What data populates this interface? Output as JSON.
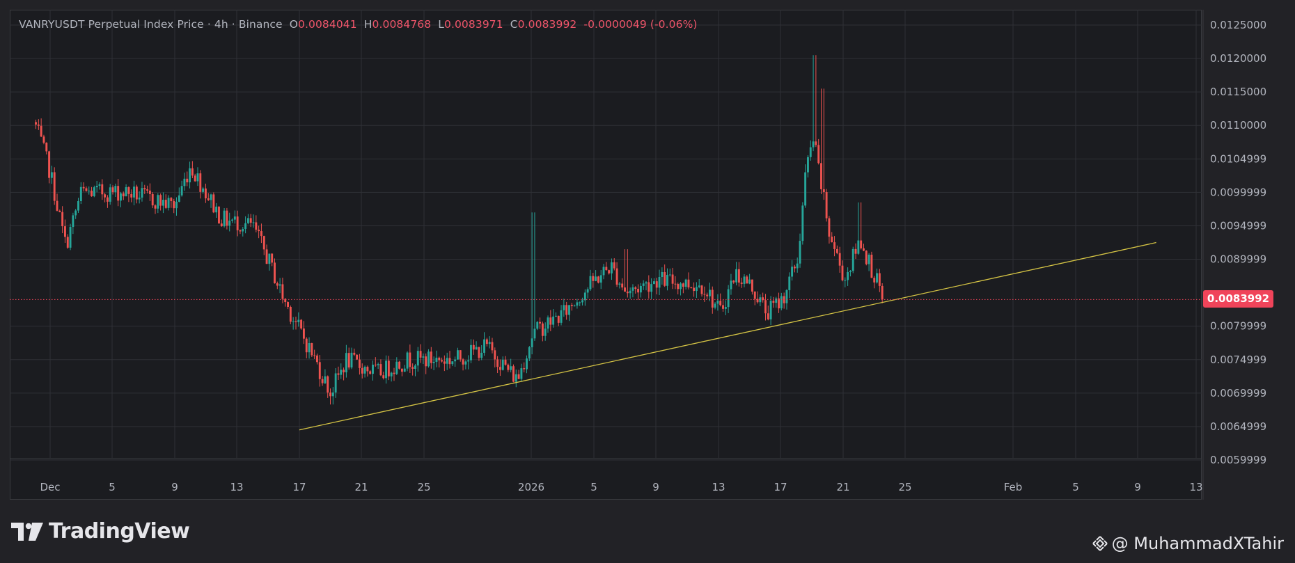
{
  "legend": {
    "symbol": "VANRYUSDT Perpetual Index Price · 4h · Binance",
    "open_label": "O",
    "open": "0.0084041",
    "high_label": "H",
    "high": "0.0084768",
    "low_label": "L",
    "low": "0.0083971",
    "close_label": "C",
    "close": "0.0083992",
    "change": "-0.0000049 (-0.06%)"
  },
  "current_price": "0.0083992",
  "brand": "TradingView",
  "credit": "@ MuhammadXTahir",
  "colors": {
    "up": "#26a69a",
    "down": "#ef5350",
    "trendline": "#d6c545",
    "badge": "#f0445a",
    "grid": "#2f3036"
  },
  "icons": [
    "tradingview-logo-icon",
    "binance-logo-icon"
  ],
  "chart_data": {
    "type": "candlestick",
    "title": "VANRYUSDT Perpetual Index Price · 4h · Binance",
    "timeframe": "4h",
    "y_ticks": [
      "0.0125000",
      "0.0120000",
      "0.0115000",
      "0.0110000",
      "0.0104999",
      "0.0099999",
      "0.0094999",
      "0.0089999",
      "0.0079999",
      "0.0074999",
      "0.0069999",
      "0.0064999",
      "0.0059999"
    ],
    "x_ticks": [
      "Dec",
      "5",
      "9",
      "13",
      "17",
      "21",
      "25",
      "2026",
      "5",
      "9",
      "13",
      "17",
      "21",
      "25",
      "Feb",
      "5",
      "9",
      "13"
    ],
    "ylim": [
      0.0059,
      0.0126
    ],
    "last_price": 0.0083992,
    "trendline": {
      "points": [
        {
          "date": "Dec 17",
          "price": 0.00645
        },
        {
          "date": "Feb 10",
          "price": 0.00925
        }
      ]
    },
    "path_anchors": [
      {
        "date": "Nov 30",
        "price": 0.01105
      },
      {
        "date": "Dec 1",
        "price": 0.0103
      },
      {
        "date": "Dec 2",
        "price": 0.0092
      },
      {
        "date": "Dec 3",
        "price": 0.01
      },
      {
        "date": "Dec 6",
        "price": 0.01
      },
      {
        "date": "Dec 9",
        "price": 0.0098
      },
      {
        "date": "Dec 10",
        "price": 0.0104
      },
      {
        "date": "Dec 12",
        "price": 0.0096
      },
      {
        "date": "Dec 14",
        "price": 0.0095
      },
      {
        "date": "Dec 15",
        "price": 0.009
      },
      {
        "date": "Dec 16",
        "price": 0.0084
      },
      {
        "date": "Dec 18",
        "price": 0.0075
      },
      {
        "date": "Dec 19",
        "price": 0.007
      },
      {
        "date": "Dec 20",
        "price": 0.0075
      },
      {
        "date": "Dec 22",
        "price": 0.0073
      },
      {
        "date": "Dec 24",
        "price": 0.0075
      },
      {
        "date": "Dec 27",
        "price": 0.0075
      },
      {
        "date": "Dec 29",
        "price": 0.0077
      },
      {
        "date": "Dec 31",
        "price": 0.0072
      },
      {
        "date": "Jan 1",
        "price": 0.0079
      },
      {
        "date": "Jan 3",
        "price": 0.0082
      },
      {
        "date": "Jan 5",
        "price": 0.0087
      },
      {
        "date": "Jan 6",
        "price": 0.0089
      },
      {
        "date": "Jan 7",
        "price": 0.0085
      },
      {
        "date": "Jan 9",
        "price": 0.0087
      },
      {
        "date": "Jan 12",
        "price": 0.0086
      },
      {
        "date": "Jan 13",
        "price": 0.0082
      },
      {
        "date": "Jan 14",
        "price": 0.0088
      },
      {
        "date": "Jan 15",
        "price": 0.0086
      },
      {
        "date": "Jan 16",
        "price": 0.0082
      },
      {
        "date": "Jan 17",
        "price": 0.0084
      },
      {
        "date": "Jan 18",
        "price": 0.009
      },
      {
        "date": "Jan 18.5",
        "price": 0.0103
      },
      {
        "date": "Jan 19",
        "price": 0.0108
      },
      {
        "date": "Jan 20",
        "price": 0.0094
      },
      {
        "date": "Jan 21",
        "price": 0.0087
      },
      {
        "date": "Jan 22",
        "price": 0.0093
      },
      {
        "date": "Jan 23",
        "price": 0.0087
      },
      {
        "date": "Jan 23.5",
        "price": 0.0084
      }
    ],
    "candle_count": 320
  }
}
